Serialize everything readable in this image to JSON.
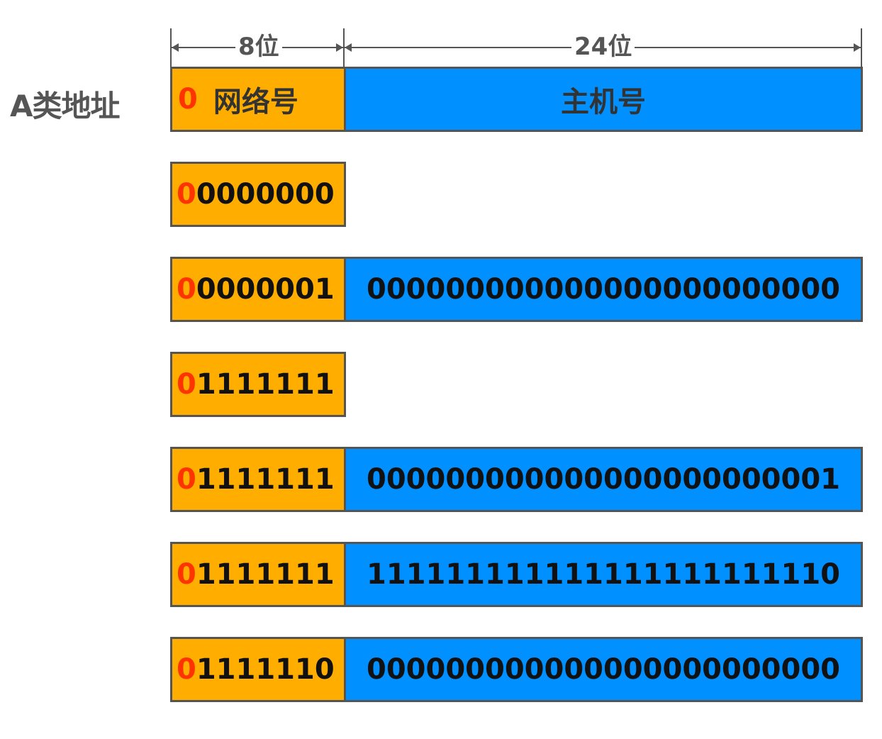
{
  "class_label": "A类地址",
  "dimensions": {
    "network_bits_label": "8位",
    "host_bits_label": "24位"
  },
  "header": {
    "leading_bit": "0",
    "network_label": "网络号",
    "host_label": "主机号"
  },
  "rows": [
    {
      "lead": "0",
      "network_rest": "0000000",
      "host": ""
    },
    {
      "lead": "0",
      "network_rest": "0000001",
      "host": "000000000000000000000000"
    },
    {
      "lead": "0",
      "network_rest": "1111111",
      "host": ""
    },
    {
      "lead": "0",
      "network_rest": "1111111",
      "host": "000000000000000000000001"
    },
    {
      "lead": "0",
      "network_rest": "1111111",
      "host": "111111111111111111111110"
    },
    {
      "lead": "0",
      "network_rest": "1111110",
      "host": "000000000000000000000000"
    }
  ],
  "colors": {
    "network": "#FFAE00",
    "host": "#0090FF",
    "lead_bit": "#FF3300",
    "border": "#555555"
  }
}
